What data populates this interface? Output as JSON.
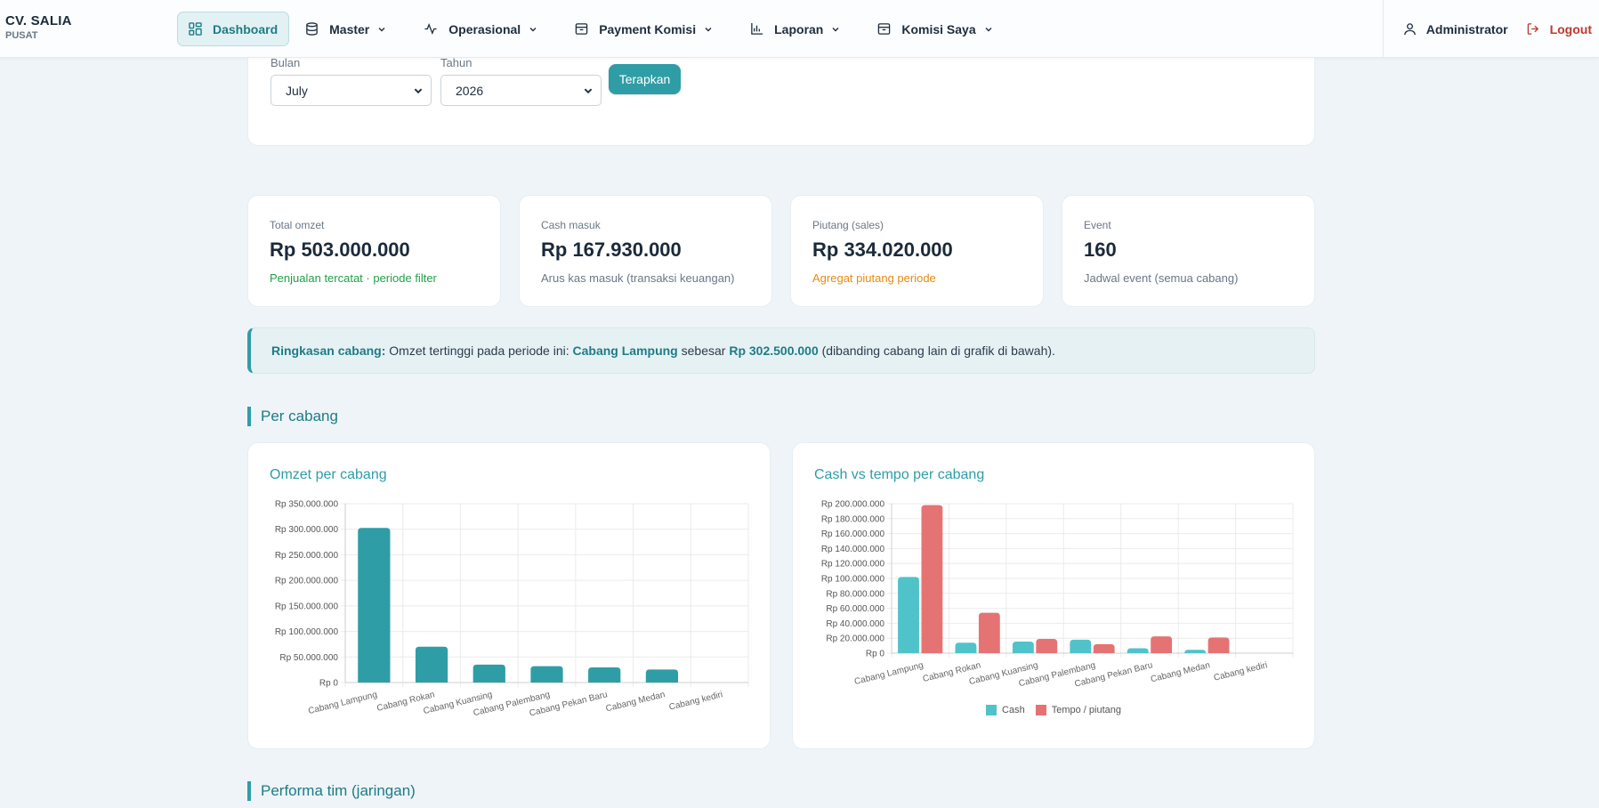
{
  "brand": {
    "name": "CV. SALIA",
    "sub": "PUSAT"
  },
  "nav": {
    "items": [
      {
        "label": "Dashboard",
        "icon": "grid-icon",
        "active": true,
        "dropdown": false
      },
      {
        "label": "Master",
        "icon": "database-icon",
        "dropdown": true
      },
      {
        "label": "Operasional",
        "icon": "activity-icon",
        "dropdown": true
      },
      {
        "label": "Payment Komisi",
        "icon": "archive-icon",
        "dropdown": true
      },
      {
        "label": "Laporan",
        "icon": "bar-chart-icon",
        "dropdown": true
      },
      {
        "label": "Komisi Saya",
        "icon": "archive-icon",
        "dropdown": true
      }
    ],
    "user": "Administrator",
    "logout": "Logout"
  },
  "filter": {
    "month_label": "Bulan",
    "month_value": "July",
    "year_label": "Tahun",
    "year_value": "2026",
    "apply_label": "Terapkan"
  },
  "stats": [
    {
      "label": "Total omzet",
      "value": "Rp 503.000.000",
      "note": "Penjualan tercatat · periode filter",
      "note_color": "#22a04a"
    },
    {
      "label": "Cash masuk",
      "value": "Rp 167.930.000",
      "note": "Arus kas masuk (transaksi keuangan)",
      "note_color": "#6b7785"
    },
    {
      "label": "Piutang (sales)",
      "value": "Rp 334.020.000",
      "note": "Agregat piutang periode",
      "note_color": "#e88a10"
    },
    {
      "label": "Event",
      "value": "160",
      "note": "Jadwal event (semua cabang)",
      "note_color": "#6b7785"
    }
  ],
  "summary": {
    "prefix": "Ringkasan cabang:",
    "text1": "Omzet tertinggi pada periode ini:",
    "branch": "Cabang Lampung",
    "text2": "sebesar",
    "amount": "Rp 302.500.000",
    "text3": "(dibanding cabang lain di grafik di bawah)."
  },
  "sections": {
    "per_cabang": "Per cabang",
    "performa": "Performa tim (jaringan)"
  },
  "colors": {
    "accent": "#2f9da6",
    "cash": "#4fc3c9",
    "tempo": "#e57373",
    "logout": "#c0392b"
  },
  "chart_data": [
    {
      "type": "bar",
      "title": "Omzet per cabang",
      "categories": [
        "Cabang Lampung",
        "Cabang Rokan",
        "Cabang Kuansing",
        "Cabang Palembang",
        "Cabang Pekan Baru",
        "Cabang Medan",
        "Cabang kediri"
      ],
      "values": [
        302500000,
        70000000,
        35000000,
        32000000,
        29500000,
        25500000,
        0
      ],
      "ylim": [
        0,
        350000000
      ],
      "yticks": [
        0,
        50000000,
        100000000,
        150000000,
        200000000,
        250000000,
        300000000,
        350000000
      ],
      "xlabel": "",
      "ylabel": "",
      "grid": true
    },
    {
      "type": "bar",
      "title": "Cash vs tempo per cabang",
      "categories": [
        "Cabang Lampung",
        "Cabang Rokan",
        "Cabang Kuansing",
        "Cabang Palembang",
        "Cabang Pekan Baru",
        "Cabang Medan",
        "Cabang kediri"
      ],
      "series": [
        {
          "name": "Cash",
          "values": [
            102000000,
            14000000,
            15500000,
            18000000,
            6500000,
            4500000,
            0
          ]
        },
        {
          "name": "Tempo / piutang",
          "values": [
            198000000,
            54000000,
            19000000,
            12000000,
            22500000,
            21000000,
            0
          ]
        }
      ],
      "ylim": [
        0,
        200000000
      ],
      "yticks": [
        0,
        20000000,
        40000000,
        60000000,
        80000000,
        100000000,
        120000000,
        140000000,
        160000000,
        180000000,
        200000000
      ],
      "legend": "bottom",
      "grid": true
    }
  ]
}
